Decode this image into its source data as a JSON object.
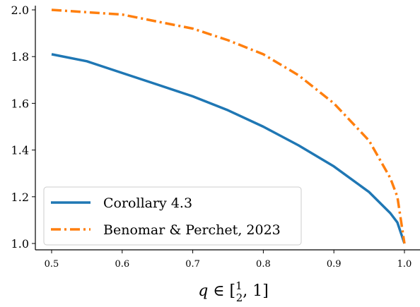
{
  "chart_data": {
    "type": "line",
    "xlabel": "q ∈ [½, 1]",
    "ylabel": "",
    "xlim": [
      0.5,
      1.0
    ],
    "ylim": [
      1.0,
      2.0
    ],
    "x_ticks": [
      0.5,
      0.6,
      0.7,
      0.8,
      0.9,
      1.0
    ],
    "x_tick_labels": [
      "0.5",
      "0.6",
      "0.7",
      "0.8",
      "0.9",
      "1.0"
    ],
    "y_ticks": [
      1.0,
      1.2,
      1.4,
      1.6,
      1.8,
      2.0
    ],
    "y_tick_labels": [
      "1.0",
      "1.2",
      "1.4",
      "1.6",
      "1.8",
      "2.0"
    ],
    "grid": false,
    "legend_position": "lower-left",
    "series": [
      {
        "name": "Corollary 4.3",
        "color": "#1f77b4",
        "style": "solid",
        "x": [
          0.5,
          0.55,
          0.6,
          0.65,
          0.7,
          0.75,
          0.8,
          0.85,
          0.9,
          0.95,
          0.98,
          0.99,
          1.0
        ],
        "y": [
          1.81,
          1.78,
          1.73,
          1.68,
          1.63,
          1.57,
          1.5,
          1.42,
          1.33,
          1.22,
          1.13,
          1.09,
          1.0
        ]
      },
      {
        "name": "Benomar & Perchet, 2023",
        "color": "#ff7f0e",
        "style": "dashdot",
        "x": [
          0.5,
          0.55,
          0.6,
          0.65,
          0.7,
          0.75,
          0.8,
          0.85,
          0.9,
          0.95,
          0.98,
          0.99,
          1.0
        ],
        "y": [
          2.0,
          1.99,
          1.98,
          1.95,
          1.92,
          1.87,
          1.81,
          1.72,
          1.6,
          1.44,
          1.28,
          1.2,
          1.0
        ]
      }
    ]
  }
}
